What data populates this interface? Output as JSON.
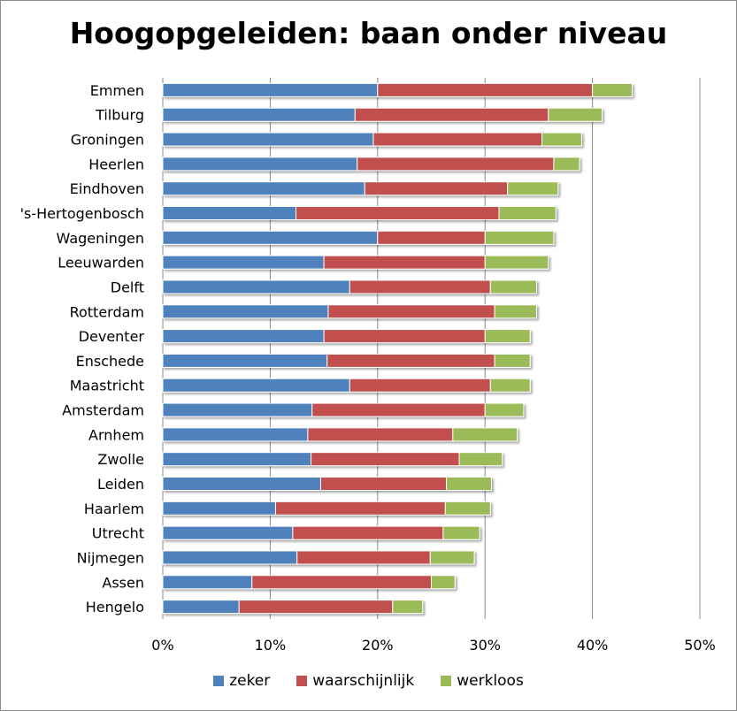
{
  "chart_data": {
    "type": "bar",
    "orientation": "horizontal",
    "stacked": true,
    "title": "Hoogopgeleiden: baan onder niveau",
    "categories": [
      "Emmen",
      "Tilburg",
      "Groningen",
      "Heerlen",
      "Eindhoven",
      "'s-Hertogenbosch",
      "Wageningen",
      "Leeuwarden",
      "Delft",
      "Rotterdam",
      "Deventer",
      "Enschede",
      "Maastricht",
      "Amsterdam",
      "Arnhem",
      "Zwolle",
      "Leiden",
      "Haarlem",
      "Utrecht",
      "Nijmegen",
      "Assen",
      "Hengelo"
    ],
    "series": [
      {
        "name": "zeker",
        "color": "#4f81bd",
        "values": [
          20.0,
          17.9,
          19.6,
          18.1,
          18.8,
          12.4,
          20.0,
          15.0,
          17.4,
          15.4,
          15.0,
          15.3,
          17.4,
          13.9,
          13.5,
          13.8,
          14.7,
          10.5,
          12.1,
          12.5,
          8.3,
          7.1
        ]
      },
      {
        "name": "waarschijnlijk",
        "color": "#c0504d",
        "values": [
          20.0,
          18.0,
          15.7,
          18.3,
          13.3,
          18.9,
          10.0,
          15.0,
          13.1,
          15.5,
          15.0,
          15.6,
          13.1,
          16.1,
          13.5,
          13.8,
          11.7,
          15.8,
          14.0,
          12.4,
          16.7,
          14.3
        ]
      },
      {
        "name": "werkloos",
        "color": "#9bbb59",
        "values": [
          3.7,
          5.0,
          3.7,
          2.4,
          4.7,
          5.3,
          6.4,
          5.9,
          4.3,
          3.9,
          4.2,
          3.3,
          3.7,
          3.6,
          6.0,
          4.0,
          4.2,
          4.2,
          3.4,
          4.1,
          2.2,
          2.8
        ]
      }
    ],
    "xlim": [
      0,
      50
    ],
    "xticks": [
      "0%",
      "10%",
      "20%",
      "30%",
      "40%",
      "50%"
    ],
    "grid": true,
    "legend_position": "bottom"
  }
}
